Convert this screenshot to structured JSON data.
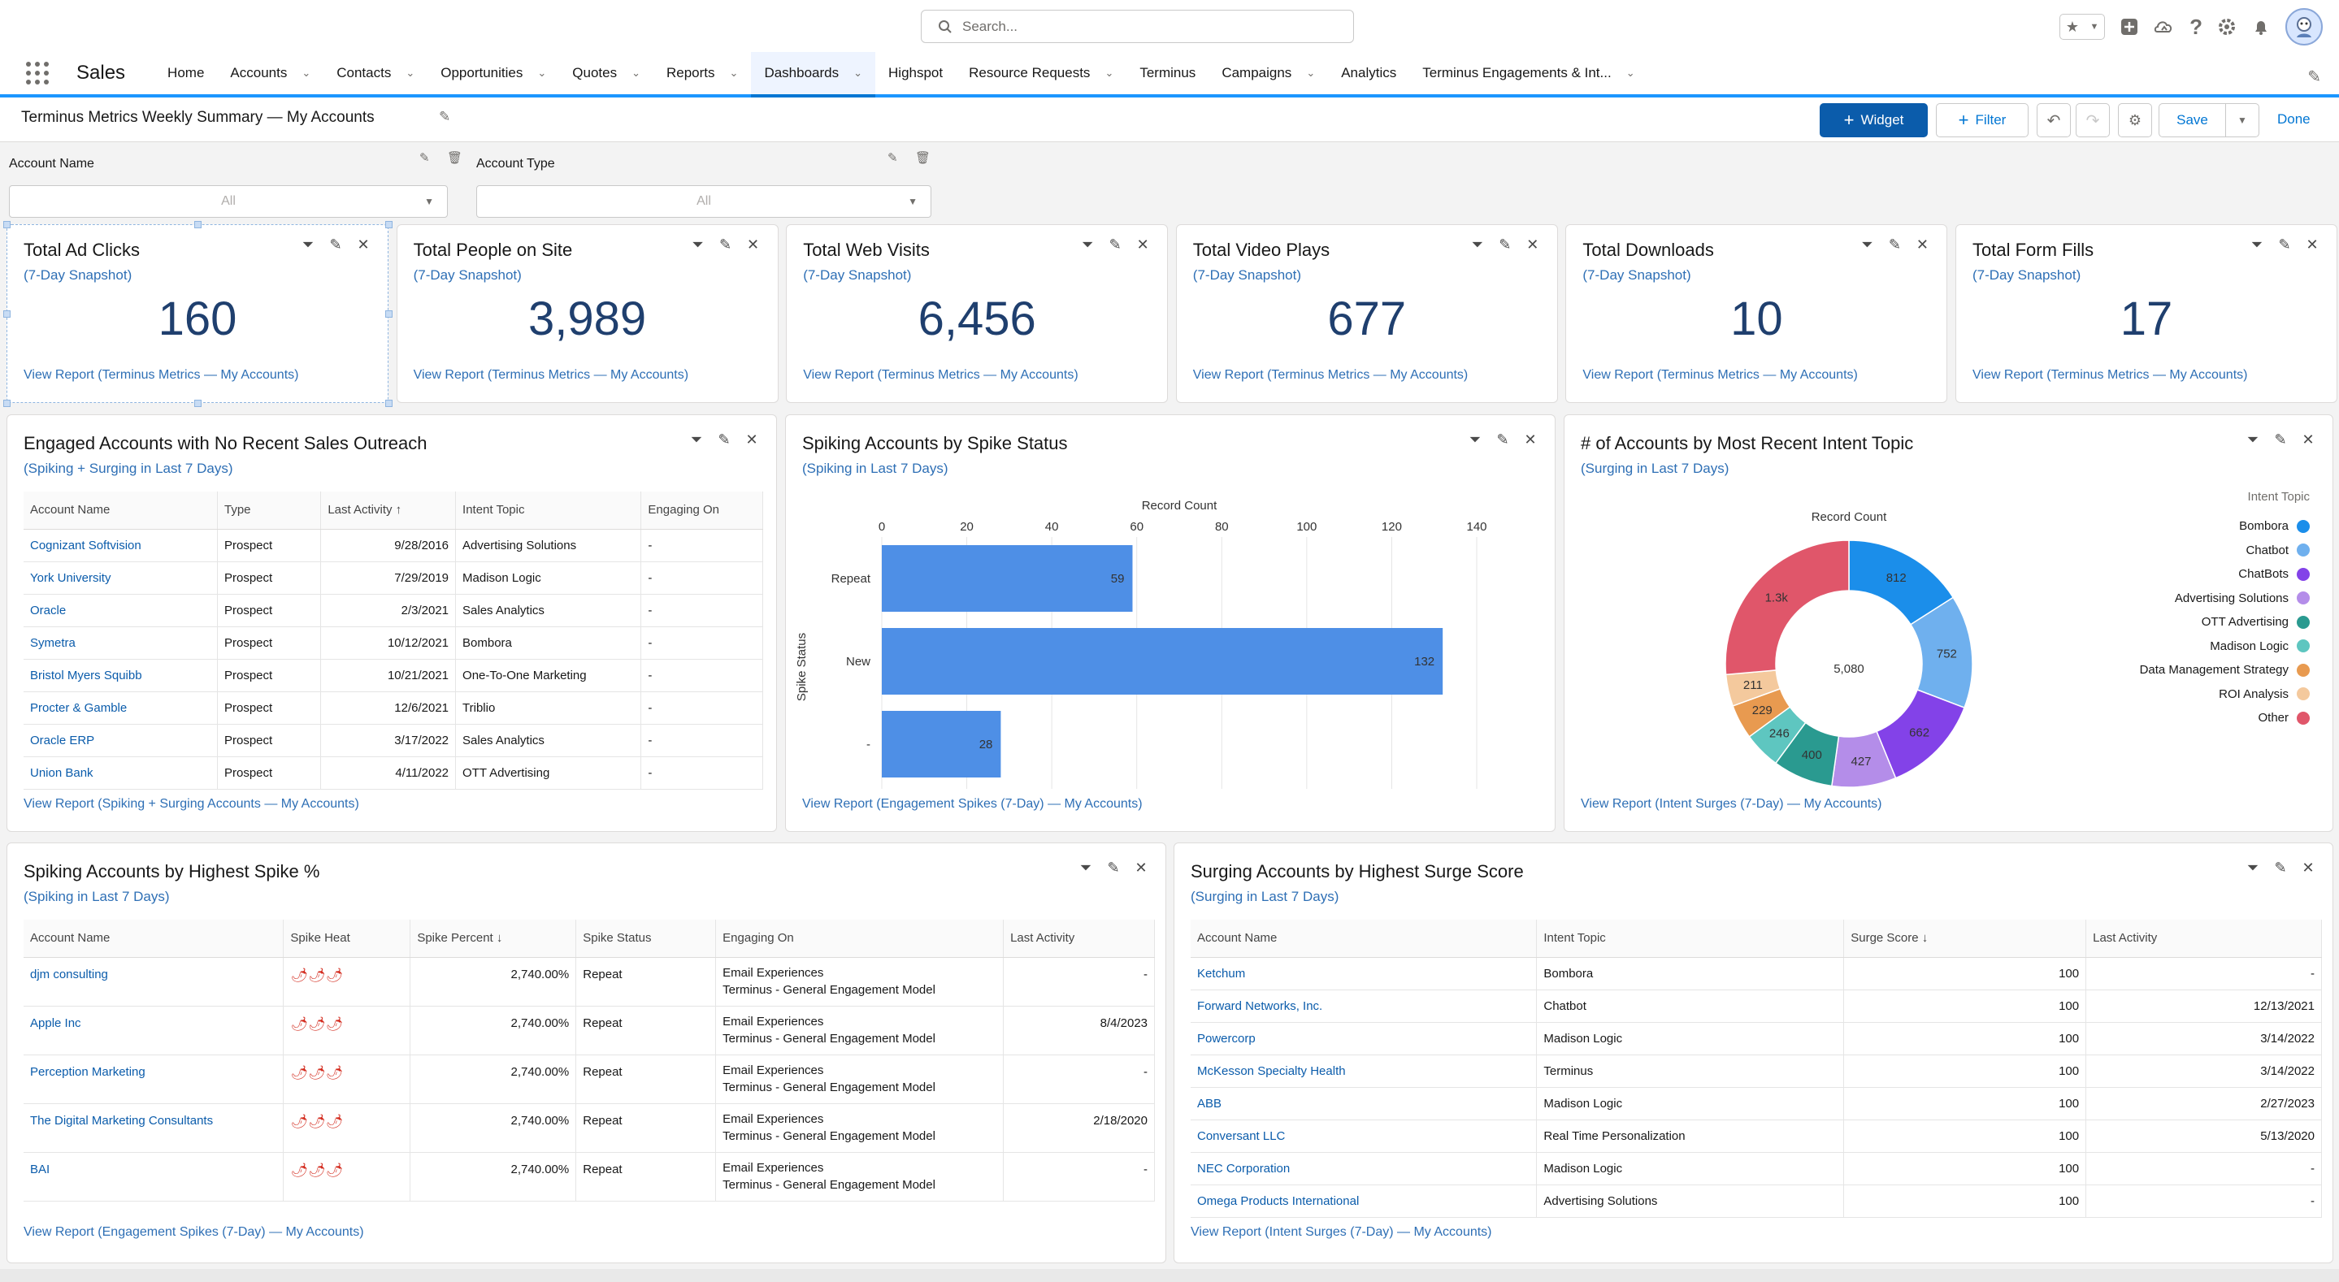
{
  "header": {
    "search_placeholder": "Search...",
    "app_name": "Sales"
  },
  "nav": {
    "items": [
      {
        "label": "Home",
        "chevron": false
      },
      {
        "label": "Accounts",
        "chevron": true
      },
      {
        "label": "Contacts",
        "chevron": true
      },
      {
        "label": "Opportunities",
        "chevron": true
      },
      {
        "label": "Quotes",
        "chevron": true
      },
      {
        "label": "Reports",
        "chevron": true
      },
      {
        "label": "Dashboards",
        "chevron": true,
        "active": true
      },
      {
        "label": "Highspot",
        "chevron": false
      },
      {
        "label": "Resource Requests",
        "chevron": true
      },
      {
        "label": "Terminus",
        "chevron": false
      },
      {
        "label": "Campaigns",
        "chevron": true
      },
      {
        "label": "Analytics",
        "chevron": false
      },
      {
        "label": "Terminus Engagements & Int...",
        "chevron": true
      }
    ]
  },
  "toolbar": {
    "title": "Terminus Metrics Weekly Summary — My Accounts",
    "widget_label": "Widget",
    "filter_label": "Filter",
    "save_label": "Save",
    "done_label": "Done"
  },
  "filters": {
    "account_name": {
      "label": "Account Name",
      "value": "All"
    },
    "account_type": {
      "label": "Account Type",
      "value": "All"
    }
  },
  "metrics": [
    {
      "title": "Total Ad Clicks",
      "sub": "(7-Day Snapshot)",
      "value": "160",
      "link": "View Report (Terminus Metrics — My Accounts)"
    },
    {
      "title": "Total People on Site",
      "sub": "(7-Day Snapshot)",
      "value": "3,989",
      "link": "View Report (Terminus Metrics — My Accounts)"
    },
    {
      "title": "Total Web Visits",
      "sub": "(7-Day Snapshot)",
      "value": "6,456",
      "link": "View Report (Terminus Metrics — My Accounts)"
    },
    {
      "title": "Total Video Plays",
      "sub": "(7-Day Snapshot)",
      "value": "677",
      "link": "View Report (Terminus Metrics — My Accounts)"
    },
    {
      "title": "Total Downloads",
      "sub": "(7-Day Snapshot)",
      "value": "10",
      "link": "View Report (Terminus Metrics — My Accounts)"
    },
    {
      "title": "Total Form Fills",
      "sub": "(7-Day Snapshot)",
      "value": "17",
      "link": "View Report (Terminus Metrics — My Accounts)"
    }
  ],
  "engaged": {
    "title": "Engaged Accounts with No Recent Sales Outreach",
    "sub": "(Spiking + Surging in Last 7 Days)",
    "columns": [
      "Account Name",
      "Type",
      "Last Activity ↑",
      "Intent Topic",
      "Engaging On"
    ],
    "rows": [
      [
        "Cognizant Softvision",
        "Prospect",
        "9/28/2016",
        "Advertising Solutions",
        "-"
      ],
      [
        "York University",
        "Prospect",
        "7/29/2019",
        "Madison Logic",
        "-"
      ],
      [
        "Oracle",
        "Prospect",
        "2/3/2021",
        "Sales Analytics",
        "-"
      ],
      [
        "Symetra",
        "Prospect",
        "10/12/2021",
        "Bombora",
        "-"
      ],
      [
        "Bristol Myers Squibb",
        "Prospect",
        "10/21/2021",
        "One-To-One Marketing",
        "-"
      ],
      [
        "Procter & Gamble",
        "Prospect",
        "12/6/2021",
        "Triblio",
        "-"
      ],
      [
        "Oracle ERP",
        "Prospect",
        "3/17/2022",
        "Sales Analytics",
        "-"
      ],
      [
        "Union Bank",
        "Prospect",
        "4/11/2022",
        "OTT Advertising",
        "-"
      ]
    ],
    "link": "View Report (Spiking + Surging Accounts — My Accounts)"
  },
  "spike_status": {
    "title": "Spiking Accounts by Spike Status",
    "sub": "(Spiking in Last 7 Days)",
    "link": "View Report (Engagement Spikes (7-Day) — My Accounts)"
  },
  "intent_topic": {
    "title": "# of Accounts by Most Recent Intent Topic",
    "sub": "(Surging in Last 7 Days)",
    "link": "View Report (Intent Surges (7-Day) — My Accounts)"
  },
  "chart_data": [
    {
      "type": "bar",
      "orientation": "horizontal",
      "title": "Record Count",
      "xlabel": "Record Count",
      "ylabel": "Spike Status",
      "categories": [
        "Repeat",
        "New",
        "-"
      ],
      "values": [
        59,
        132,
        28
      ],
      "xlim": [
        0,
        140
      ],
      "xticks": [
        0,
        20,
        40,
        60,
        80,
        100,
        120,
        140
      ],
      "color": "#4e8fe6",
      "grid": true
    },
    {
      "type": "pie",
      "donut": true,
      "title": "Record Count",
      "center_label": "5,080",
      "legend_title": "Intent Topic",
      "legend_position": "right",
      "slices": [
        {
          "label": "Bombora",
          "value": 812,
          "display": "812",
          "color": "#1b8eea"
        },
        {
          "label": "Chatbot",
          "value": 752,
          "display": "752",
          "color": "#6fb0ee"
        },
        {
          "label": "ChatBots",
          "value": 662,
          "display": "662",
          "color": "#8342e8"
        },
        {
          "label": "Advertising Solutions",
          "value": 427,
          "display": "427",
          "color": "#b48de9"
        },
        {
          "label": "OTT Advertising",
          "value": 400,
          "display": "400",
          "color": "#2a9a90"
        },
        {
          "label": "Madison Logic",
          "value": 246,
          "display": "246",
          "color": "#5ec6c0"
        },
        {
          "label": "Data Management Strategy",
          "value": 229,
          "display": "229",
          "color": "#e89a50"
        },
        {
          "label": "ROI Analysis",
          "value": 211,
          "display": "211",
          "color": "#f4c99d"
        },
        {
          "label": "Other",
          "value": 1341,
          "display": "1.3k",
          "color": "#e0566a"
        }
      ]
    }
  ],
  "spike_pct": {
    "title": "Spiking Accounts by Highest Spike %",
    "sub": "(Spiking in Last 7 Days)",
    "columns": [
      "Account Name",
      "Spike Heat",
      "Spike Percent ↓",
      "Spike Status",
      "Engaging On",
      "Last Activity"
    ],
    "rows": [
      {
        "name": "djm consulting",
        "heat": "🌶🌶🌶",
        "pct": "2,740.00%",
        "status": "Repeat",
        "eng1": "Email Experiences",
        "eng2": "Terminus - General Engagement Model",
        "last": "-"
      },
      {
        "name": "Apple Inc",
        "heat": "🌶🌶🌶",
        "pct": "2,740.00%",
        "status": "Repeat",
        "eng1": "Email Experiences",
        "eng2": "Terminus - General Engagement Model",
        "last": "8/4/2023"
      },
      {
        "name": "Perception Marketing",
        "heat": "🌶🌶🌶",
        "pct": "2,740.00%",
        "status": "Repeat",
        "eng1": "Email Experiences",
        "eng2": "Terminus - General Engagement Model",
        "last": "-"
      },
      {
        "name": "The Digital Marketing Consultants",
        "heat": "🌶🌶🌶",
        "pct": "2,740.00%",
        "status": "Repeat",
        "eng1": "Email Experiences",
        "eng2": "Terminus - General Engagement Model",
        "last": "2/18/2020"
      },
      {
        "name": "BAI",
        "heat": "🌶🌶🌶",
        "pct": "2,740.00%",
        "status": "Repeat",
        "eng1": "Email Experiences",
        "eng2": "Terminus - General Engagement Model",
        "last": "-"
      }
    ],
    "link": "View Report (Engagement Spikes (7-Day) — My Accounts)"
  },
  "surge": {
    "title": "Surging Accounts by Highest Surge Score",
    "sub": "(Surging in Last 7 Days)",
    "columns": [
      "Account Name",
      "Intent Topic",
      "Surge Score ↓",
      "Last Activity"
    ],
    "rows": [
      [
        "Ketchum",
        "Bombora",
        "100",
        "-"
      ],
      [
        "Forward Networks, Inc.",
        "Chatbot",
        "100",
        "12/13/2021"
      ],
      [
        "Powercorp",
        "Madison Logic",
        "100",
        "3/14/2022"
      ],
      [
        "McKesson Specialty Health",
        "Terminus",
        "100",
        "3/14/2022"
      ],
      [
        "ABB",
        "Madison Logic",
        "100",
        "2/27/2023"
      ],
      [
        "Conversant LLC",
        "Real Time Personalization",
        "100",
        "5/13/2020"
      ],
      [
        "NEC Corporation",
        "Madison Logic",
        "100",
        "-"
      ],
      [
        "Omega Products International",
        "Advertising Solutions",
        "100",
        "-"
      ]
    ],
    "link": "View Report (Intent Surges (7-Day) — My Accounts)"
  }
}
